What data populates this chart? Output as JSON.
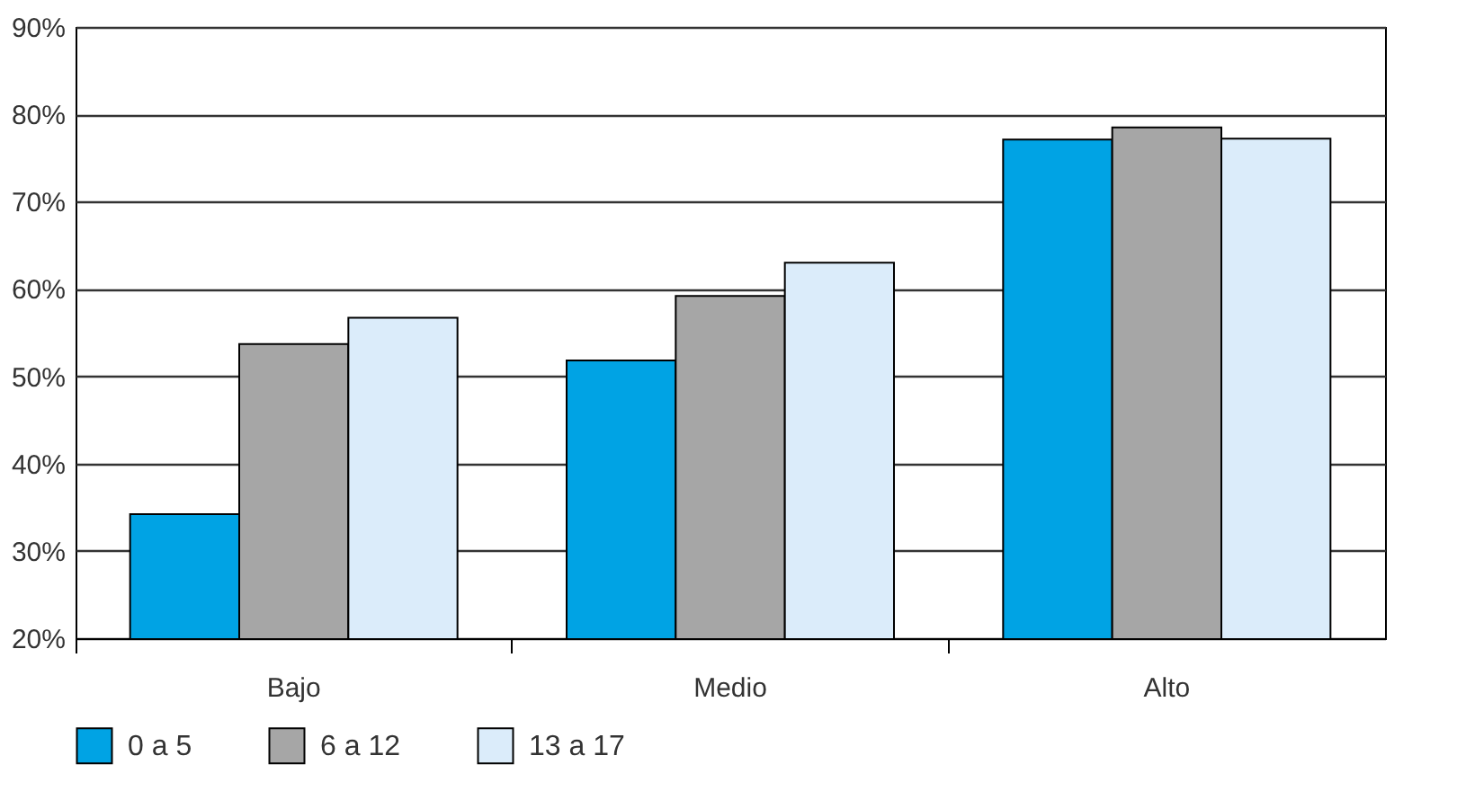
{
  "chart_data": {
    "type": "bar",
    "categories": [
      "Bajo",
      "Medio",
      "Alto"
    ],
    "series": [
      {
        "name": "0 a 5",
        "color": "#00a3e4",
        "values": [
          34.2,
          51.8,
          77.1
        ]
      },
      {
        "name": "6 a 12",
        "color": "#a6a6a6",
        "values": [
          53.7,
          59.2,
          78.5
        ]
      },
      {
        "name": "13 a 17",
        "color": "#dbecfa",
        "values": [
          56.7,
          63,
          77.2
        ]
      }
    ],
    "ylim": [
      20,
      90
    ],
    "yticks": [
      {
        "value": 20,
        "label": "20%"
      },
      {
        "value": 30,
        "label": "30%"
      },
      {
        "value": 40,
        "label": "40%"
      },
      {
        "value": 50,
        "label": "50%"
      },
      {
        "value": 60,
        "label": "60%"
      },
      {
        "value": 70,
        "label": "70%"
      },
      {
        "value": 80,
        "label": "80%"
      },
      {
        "value": 90,
        "label": "90%"
      }
    ],
    "grid": "y",
    "legend": "bottom"
  }
}
